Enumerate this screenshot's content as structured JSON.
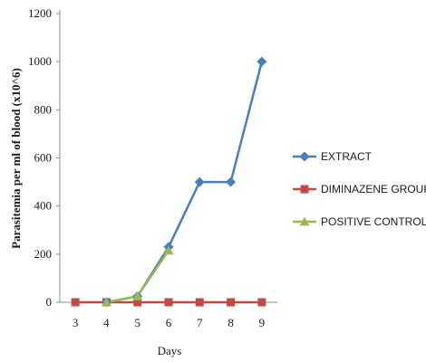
{
  "chart_data": {
    "type": "line",
    "title": "",
    "xlabel": "Days",
    "ylabel": "Parasitemia per ml of blood (x10^6)",
    "x": [
      3,
      4,
      5,
      6,
      7,
      8,
      9
    ],
    "x_tick_labels": [
      "3",
      "4",
      "5",
      "6",
      "7",
      "8",
      "9"
    ],
    "y_tick_labels": [
      "0",
      "200",
      "400",
      "600",
      "800",
      "1000",
      "1200"
    ],
    "ylim": [
      0,
      1200
    ],
    "grid": false,
    "legend_position": "right",
    "series": [
      {
        "name": "EXTRACT",
        "color": "#4a7ebb",
        "marker": "diamond",
        "x": [
          4,
          5,
          6,
          7,
          8,
          9
        ],
        "values": [
          0,
          25,
          230,
          500,
          500,
          1000
        ]
      },
      {
        "name": "DIMINAZENE GROUP",
        "color": "#be4b48",
        "marker": "square",
        "x": [
          3,
          4,
          5,
          6,
          7,
          8,
          9
        ],
        "values": [
          0,
          0,
          0,
          0,
          0,
          0,
          0
        ]
      },
      {
        "name": "POSITIVE CONTROL",
        "color": "#98b954",
        "marker": "triangle",
        "x": [
          4,
          5,
          6
        ],
        "values": [
          0,
          25,
          215
        ]
      }
    ]
  }
}
